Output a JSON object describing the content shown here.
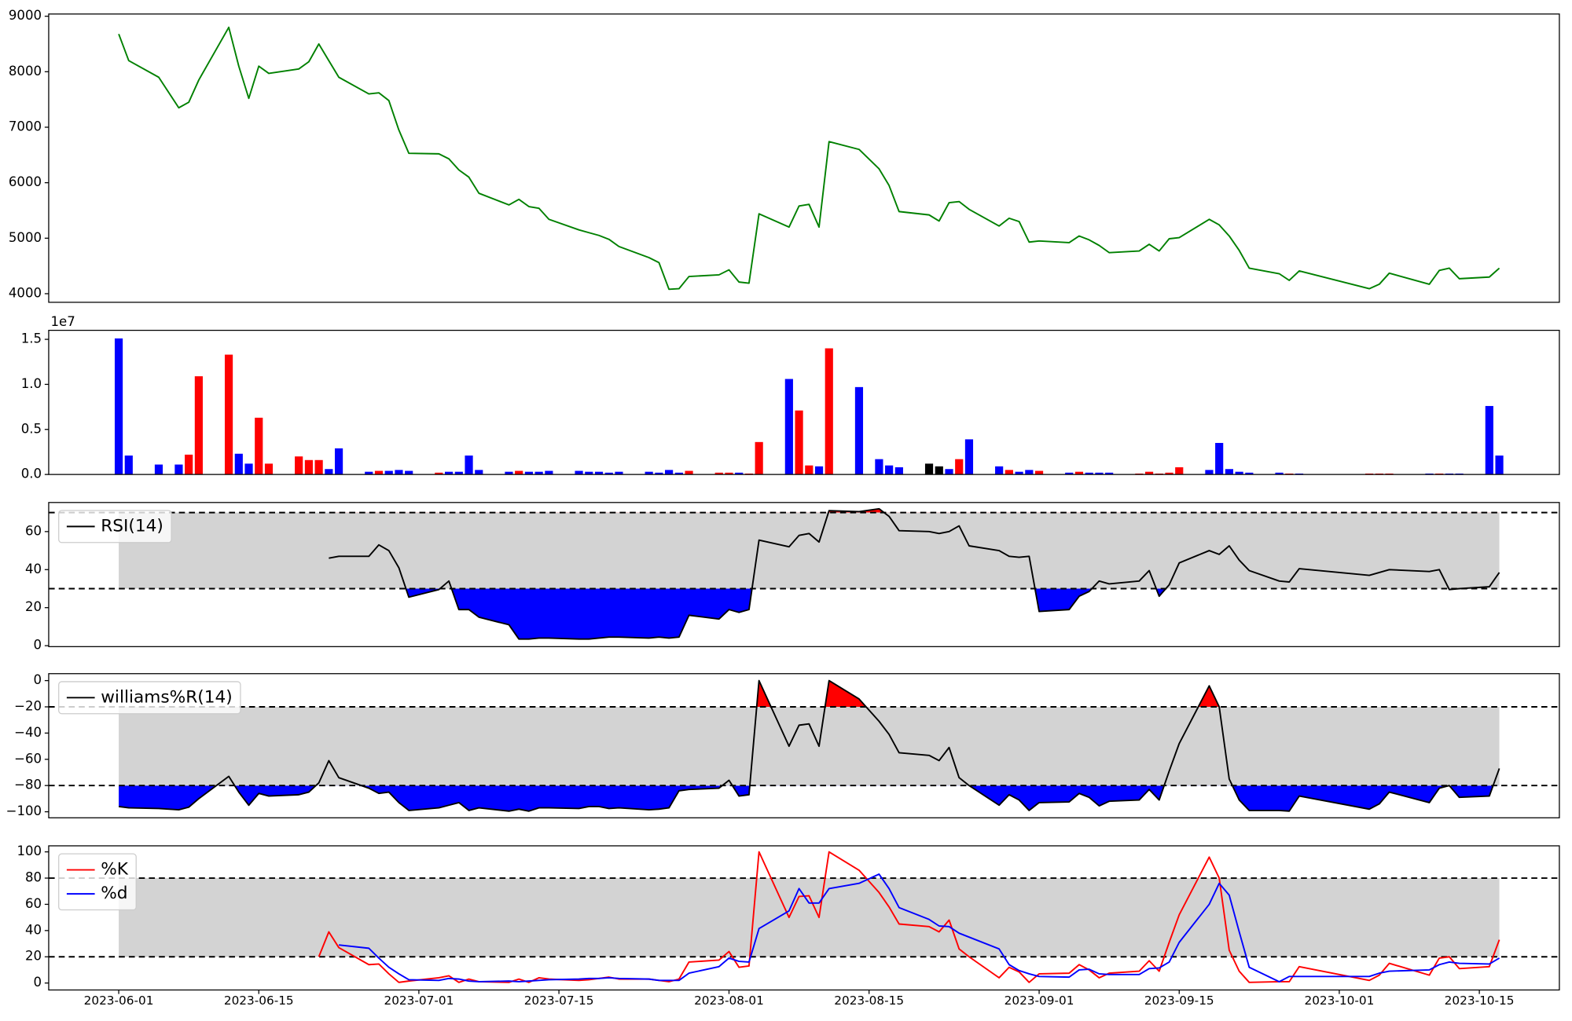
{
  "chart_data": [
    {
      "type": "line",
      "ylim": [
        3845,
        9040
      ],
      "yticks": [
        4000,
        5000,
        6000,
        7000,
        8000,
        9000
      ],
      "series": [
        {
          "color": "green",
          "values": [
            8680,
            8200,
            7900,
            7350,
            7450,
            7850,
            8800,
            8100,
            7520,
            8100,
            7970,
            8050,
            8180,
            8500,
            8200,
            7900,
            7600,
            7620,
            7480,
            6950,
            6530,
            6520,
            6430,
            6230,
            6100,
            5810,
            5600,
            5700,
            5570,
            5540,
            5340,
            5150,
            5100,
            5050,
            4980,
            4850,
            4650,
            4560,
            4080,
            4090,
            4310,
            4340,
            4430,
            4210,
            4190,
            5440,
            5200,
            5580,
            5610,
            5200,
            6740,
            6600,
            6250,
            5950,
            5480,
            5420,
            5310,
            5640,
            5660,
            5520,
            5220,
            5360,
            5300,
            4930,
            4950,
            4920,
            5040,
            4970,
            4870,
            4740,
            4770,
            4890,
            4770,
            4990,
            5010,
            5340,
            5240,
            5040,
            4780,
            4460,
            4360,
            4240,
            4410,
            4090,
            4170,
            4370,
            4170,
            4420,
            4460,
            4270,
            4300,
            4460
          ]
        }
      ]
    },
    {
      "type": "bar",
      "offset_label": "1e7",
      "ylim": [
        0,
        1.6
      ],
      "yticks": [
        {
          "value": 0,
          "label": "0.0"
        },
        {
          "value": 0.5,
          "label": "0.5"
        },
        {
          "value": 1,
          "label": "1.0"
        },
        {
          "value": 1.5,
          "label": "1.5"
        }
      ],
      "values": [
        1.51,
        0.21,
        0.11,
        0.11,
        0.22,
        1.09,
        1.33,
        0.23,
        0.12,
        0.63,
        0.12,
        0.2,
        0.16,
        0.16,
        0.06,
        0.29,
        0.03,
        0.04,
        0.04,
        0.05,
        0.04,
        0.02,
        0.03,
        0.03,
        0.21,
        0.05,
        0.03,
        0.04,
        0.03,
        0.03,
        0.04,
        0.04,
        0.03,
        0.03,
        0.02,
        0.03,
        0.03,
        0.02,
        0.05,
        0.02,
        0.04,
        0.02,
        0.02,
        0.02,
        0.01,
        0.36,
        1.06,
        0.71,
        0.1,
        0.09,
        1.4,
        0.97,
        0.17,
        0.1,
        0.08,
        0.12,
        0.09,
        0.06,
        0.17,
        0.39,
        0.09,
        0.05,
        0.03,
        0.05,
        0.04,
        0.02,
        0.03,
        0.02,
        0.02,
        0.02,
        0.01,
        0.03,
        0.01,
        0.02,
        0.08,
        0.05,
        0.35,
        0.06,
        0.03,
        0.02,
        0.02,
        0.01,
        0.01,
        0.01,
        0.01,
        0.01,
        0.01,
        0.01,
        0.01,
        0.01,
        0.76,
        0.21
      ],
      "colors": [
        "blue",
        "blue",
        "blue",
        "blue",
        "red",
        "red",
        "red",
        "blue",
        "blue",
        "red",
        "red",
        "red",
        "red",
        "red",
        "blue",
        "blue",
        "blue",
        "red",
        "blue",
        "blue",
        "blue",
        "red",
        "blue",
        "blue",
        "blue",
        "blue",
        "blue",
        "red",
        "blue",
        "blue",
        "blue",
        "blue",
        "blue",
        "blue",
        "blue",
        "blue",
        "blue",
        "blue",
        "blue",
        "blue",
        "red",
        "red",
        "red",
        "blue",
        "red",
        "red",
        "blue",
        "red",
        "red",
        "blue",
        "red",
        "blue",
        "blue",
        "blue",
        "blue",
        "black",
        "black",
        "blue",
        "red",
        "blue",
        "blue",
        "red",
        "blue",
        "blue",
        "red",
        "blue",
        "red",
        "blue",
        "blue",
        "blue",
        "red",
        "red",
        "red",
        "red",
        "red",
        "blue",
        "blue",
        "blue",
        "blue",
        "blue",
        "blue",
        "red",
        "blue",
        "red",
        "red",
        "red",
        "blue",
        "red",
        "blue",
        "blue",
        "blue",
        "blue"
      ]
    },
    {
      "type": "line",
      "ylim": [
        -0.5,
        75.3
      ],
      "yticks": [
        0,
        20,
        40,
        60
      ],
      "thresholds": [
        30,
        70
      ],
      "band_color": "lightgray",
      "fill_colors": [
        "blue",
        "red"
      ],
      "legend": "upper left",
      "series": [
        {
          "name": "RSI(14)",
          "color": "black",
          "values": [
            null,
            null,
            null,
            null,
            null,
            null,
            null,
            null,
            null,
            null,
            null,
            null,
            null,
            null,
            46,
            47,
            47,
            53,
            50,
            41,
            25.5,
            29.5,
            34,
            19,
            19,
            15,
            11,
            3.5,
            3.5,
            4,
            4,
            3.5,
            3.5,
            4,
            4.5,
            4.5,
            4,
            4.5,
            4,
            4.5,
            16,
            14,
            19,
            17.5,
            19,
            55.5,
            52,
            58,
            59,
            54.5,
            71,
            70.5,
            72,
            68,
            60.5,
            60,
            59,
            60,
            63,
            52.5,
            50,
            47,
            46.5,
            47,
            18,
            19,
            26,
            28.5,
            34,
            32.5,
            34,
            39.5,
            26,
            32,
            43.5,
            50,
            48,
            52.5,
            45,
            39.5,
            34,
            33.5,
            40.5,
            37,
            38.5,
            40,
            39,
            40,
            29.5,
            30,
            31,
            38.5
          ]
        }
      ]
    },
    {
      "type": "line",
      "ylim": [
        -104.6,
        5.3
      ],
      "thresholds": [
        -80,
        -20
      ],
      "band_color": "lightgray",
      "fill_colors": [
        "blue",
        "red"
      ],
      "legend": "upper left",
      "yticks": [
        {
          "value": -100,
          "label": "−100"
        },
        {
          "value": -80,
          "label": "−80"
        },
        {
          "value": -60,
          "label": "−60"
        },
        {
          "value": -40,
          "label": "−40"
        },
        {
          "value": -20,
          "label": "−20"
        },
        0
      ],
      "series": [
        {
          "name": "williams%R(14)",
          "color": "black",
          "values": [
            -96,
            -97,
            -97.5,
            -98.5,
            -96.5,
            -90,
            -73,
            -85,
            -95,
            -86,
            -88,
            -87,
            -85,
            -78,
            -61,
            -74,
            -82,
            -86,
            -85,
            -93,
            -99,
            -97,
            -95,
            -93,
            -99,
            -97,
            -99.5,
            -98,
            -99.5,
            -97,
            -97,
            -97.5,
            -96,
            -96,
            -97.5,
            -97,
            -98.5,
            -98,
            -97,
            -84,
            -83,
            -82,
            -76,
            -88,
            -87,
            0,
            -50,
            -34,
            -33,
            -50,
            0,
            -14,
            -31,
            -41,
            -55,
            -57,
            -61,
            -51,
            -74,
            -80,
            -95,
            -87,
            -91,
            -99,
            -93,
            -92.5,
            -86,
            -89,
            -95.5,
            -92,
            -91,
            -83,
            -91,
            -69,
            -48,
            -4,
            -20,
            -75,
            -91,
            -99,
            -99,
            -99.5,
            -88,
            -98,
            -94,
            -85,
            -93,
            -82,
            -80,
            -89,
            -88,
            -67
          ]
        }
      ]
    },
    {
      "type": "line",
      "ylim": [
        -5.3,
        104.6
      ],
      "yticks": [
        0,
        20,
        40,
        60,
        80,
        100
      ],
      "thresholds": [
        20,
        80
      ],
      "band_color": "lightgray",
      "legend": "upper left",
      "x": [
        "2023-06-01",
        "2023-06-02",
        "2023-06-05",
        "2023-06-07",
        "2023-06-08",
        "2023-06-09",
        "2023-06-12",
        "2023-06-13",
        "2023-06-14",
        "2023-06-15",
        "2023-06-16",
        "2023-06-19",
        "2023-06-20",
        "2023-06-21",
        "2023-06-22",
        "2023-06-23",
        "2023-06-26",
        "2023-06-27",
        "2023-06-28",
        "2023-06-29",
        "2023-06-30",
        "2023-07-03",
        "2023-07-04",
        "2023-07-05",
        "2023-07-06",
        "2023-07-07",
        "2023-07-10",
        "2023-07-11",
        "2023-07-12",
        "2023-07-13",
        "2023-07-14",
        "2023-07-17",
        "2023-07-18",
        "2023-07-19",
        "2023-07-20",
        "2023-07-21",
        "2023-07-24",
        "2023-07-25",
        "2023-07-26",
        "2023-07-27",
        "2023-07-28",
        "2023-07-31",
        "2023-08-01",
        "2023-08-02",
        "2023-08-03",
        "2023-08-04",
        "2023-08-07",
        "2023-08-08",
        "2023-08-09",
        "2023-08-10",
        "2023-08-11",
        "2023-08-14",
        "2023-08-16",
        "2023-08-17",
        "2023-08-18",
        "2023-08-21",
        "2023-08-22",
        "2023-08-23",
        "2023-08-24",
        "2023-08-25",
        "2023-08-28",
        "2023-08-29",
        "2023-08-30",
        "2023-08-31",
        "2023-09-01",
        "2023-09-04",
        "2023-09-05",
        "2023-09-06",
        "2023-09-07",
        "2023-09-08",
        "2023-09-11",
        "2023-09-12",
        "2023-09-13",
        "2023-09-14",
        "2023-09-15",
        "2023-09-18",
        "2023-09-19",
        "2023-09-20",
        "2023-09-21",
        "2023-09-22",
        "2023-09-25",
        "2023-09-26",
        "2023-09-27",
        "2023-10-04",
        "2023-10-05",
        "2023-10-06",
        "2023-10-10",
        "2023-10-11",
        "2023-10-12",
        "2023-10-13",
        "2023-10-16",
        "2023-10-17"
      ],
      "xlim": [
        "2023-05-25",
        "2023-10-23"
      ],
      "xticks": [
        "2023-06-01",
        "2023-06-15",
        "2023-07-01",
        "2023-07-15",
        "2023-08-01",
        "2023-08-15",
        "2023-09-01",
        "2023-09-15",
        "2023-10-01",
        "2023-10-15"
      ],
      "series": [
        {
          "name": "%K",
          "color": "red",
          "values": [
            null,
            null,
            null,
            null,
            null,
            null,
            null,
            null,
            null,
            null,
            null,
            null,
            null,
            20,
            39,
            27,
            14,
            14.5,
            7,
            0.5,
            1.5,
            4,
            5.5,
            0.5,
            3,
            1,
            0.5,
            3,
            0.5,
            4,
            3,
            2,
            2.5,
            3.5,
            4.5,
            3,
            3,
            2,
            1,
            3,
            16,
            17.5,
            24,
            12,
            13,
            100,
            50,
            66,
            66.5,
            50,
            100,
            86,
            69,
            58,
            45,
            43,
            39,
            48,
            26,
            20,
            4,
            12,
            8.5,
            0.5,
            7,
            7.5,
            14,
            10,
            4,
            7.5,
            9,
            17,
            9,
            31,
            52,
            96,
            80,
            25,
            9,
            0.5,
            1,
            1,
            12.5,
            2,
            6,
            15,
            6,
            19,
            20,
            11,
            12.5,
            33
          ]
        },
        {
          "name": "%d",
          "color": "blue",
          "values": [
            null,
            null,
            null,
            null,
            null,
            null,
            null,
            null,
            null,
            null,
            null,
            null,
            null,
            null,
            null,
            29,
            26.5,
            19,
            12,
            7,
            2.5,
            2,
            3.5,
            3,
            1.5,
            1,
            1.5,
            1,
            1.5,
            2,
            2.5,
            3,
            3.5,
            3.5,
            4,
            3.5,
            3,
            2,
            2,
            2,
            7.5,
            12.5,
            19,
            16.5,
            16,
            41.5,
            55,
            72,
            61,
            61,
            72,
            76,
            83,
            72,
            57.5,
            48.5,
            43.5,
            43,
            38,
            35,
            26,
            14,
            9.5,
            7,
            5,
            4.5,
            10,
            10.5,
            7,
            6.5,
            6.5,
            11,
            11.5,
            16,
            31,
            60,
            76,
            67,
            39,
            12,
            1,
            5,
            5,
            5,
            7.5,
            9,
            10,
            14,
            16,
            15,
            14.5,
            19
          ]
        }
      ]
    }
  ]
}
